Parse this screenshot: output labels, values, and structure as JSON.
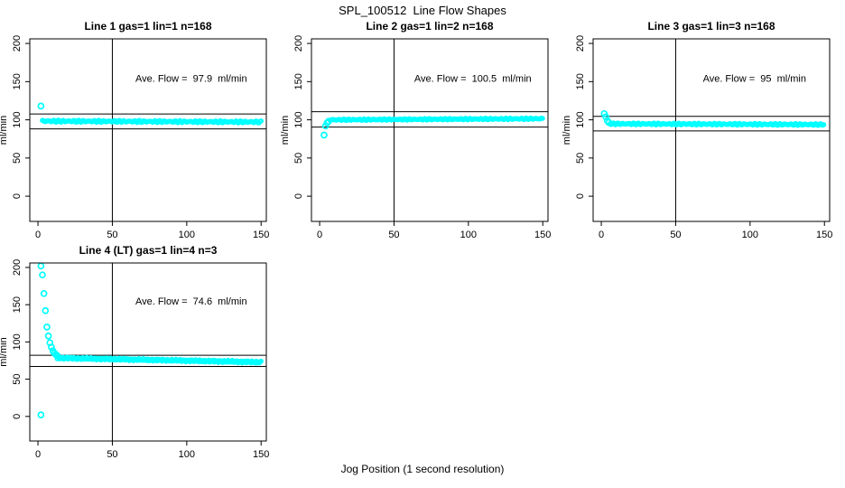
{
  "figure": {
    "title": "SPL_100512  Line Flow Shapes",
    "xlabel": "Jog Position (1 second resolution)",
    "background": "#FFFFFF",
    "axis_color": "#000000"
  },
  "chart_data": [
    {
      "type": "scatter",
      "title": "Line 1 gas=1 lin=1 n=168",
      "annotation": "Ave. Flow =  97.9  ml/min",
      "ave_flow": 97.9,
      "ylabel": "ml/min",
      "xlim": [
        -5.5,
        153.5
      ],
      "ylim": [
        -33,
        206
      ],
      "x_ticks": [
        0,
        50,
        100,
        150
      ],
      "y_ticks": [
        0,
        50,
        100,
        150,
        200
      ],
      "hlines": [
        107.7,
        88.1
      ],
      "vline": 50,
      "marker_color": "#00FFFF",
      "points": [
        [
          2,
          118
        ]
      ],
      "band": {
        "x_from": 3,
        "x_to": 150,
        "y_from": 98.3,
        "y_to": 97.2,
        "jitter": 1.4,
        "step": 0.7
      },
      "annotation_pos": [
        103,
        150
      ]
    },
    {
      "type": "scatter",
      "title": "Line 2 gas=1 lin=2 n=168",
      "annotation": "Ave. Flow =  100.5  ml/min",
      "ave_flow": 100.5,
      "ylabel": "ml/min",
      "xlim": [
        -5.5,
        153.5
      ],
      "ylim": [
        -33,
        206
      ],
      "x_ticks": [
        0,
        50,
        100,
        150
      ],
      "y_ticks": [
        0,
        50,
        100,
        150,
        200
      ],
      "hlines": [
        110.6,
        90.5
      ],
      "vline": 50,
      "marker_color": "#00FFFF",
      "points": [
        [
          3,
          80
        ],
        [
          4,
          92
        ],
        [
          5,
          96
        ],
        [
          6,
          98
        ]
      ],
      "band": {
        "x_from": 7,
        "x_to": 150,
        "y_from": 100.0,
        "y_to": 101.5,
        "jitter": 1.0,
        "step": 0.7
      },
      "annotation_pos": [
        103,
        150
      ]
    },
    {
      "type": "scatter",
      "title": "Line 3 gas=1 lin=3 n=168",
      "annotation": "Ave. Flow =  95  ml/min",
      "ave_flow": 95,
      "ylabel": "ml/min",
      "xlim": [
        -5.5,
        153.5
      ],
      "ylim": [
        -33,
        206
      ],
      "x_ticks": [
        0,
        50,
        100,
        150
      ],
      "y_ticks": [
        0,
        50,
        100,
        150,
        200
      ],
      "hlines": [
        104.5,
        85.5
      ],
      "vline": 50,
      "marker_color": "#00FFFF",
      "points": [
        [
          2,
          108
        ],
        [
          3,
          104
        ],
        [
          4,
          99
        ],
        [
          5,
          96.5
        ]
      ],
      "band": {
        "x_from": 6,
        "x_to": 150,
        "y_from": 94.8,
        "y_to": 93.8,
        "jitter": 1.2,
        "step": 0.7
      },
      "annotation_pos": [
        103,
        150
      ]
    },
    {
      "type": "scatter",
      "title": "Line 4 (LT) gas=1 lin=4 n=3",
      "annotation": "Ave. Flow =  74.6  ml/min",
      "ave_flow": 74.6,
      "ylabel": "ml/min",
      "xlim": [
        -5.5,
        153.5
      ],
      "ylim": [
        -33,
        206
      ],
      "x_ticks": [
        0,
        50,
        100,
        150
      ],
      "y_ticks": [
        0,
        50,
        100,
        150,
        200
      ],
      "hlines": [
        82.1,
        67.1
      ],
      "vline": 50,
      "marker_color": "#00FFFF",
      "points": [
        [
          2,
          202
        ],
        [
          2,
          2
        ],
        [
          3,
          190
        ],
        [
          4,
          165
        ],
        [
          5,
          142
        ],
        [
          6,
          120
        ],
        [
          7,
          108
        ],
        [
          8,
          99
        ],
        [
          9,
          93
        ],
        [
          10,
          88
        ],
        [
          11,
          85
        ],
        [
          12,
          83
        ],
        [
          13,
          81.5
        ]
      ],
      "band": {
        "x_from": 13,
        "x_to": 150,
        "y_from": 78.5,
        "y_to": 72.8,
        "jitter": 1.6,
        "step": 0.55
      },
      "annotation_pos": [
        103,
        150
      ]
    }
  ]
}
